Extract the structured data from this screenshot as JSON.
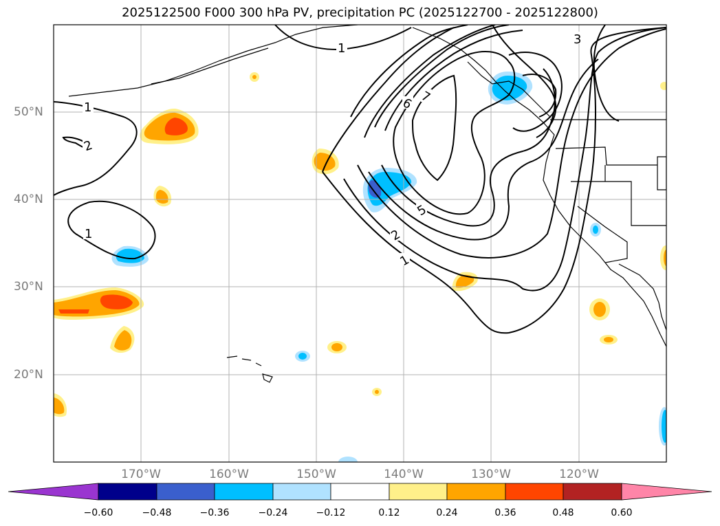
{
  "title": "2025122500 F000 300 hPa PV, precipitation PC (2025122700 - 2025122800)",
  "map": {
    "lat_labels": [
      "50°N",
      "40°N",
      "30°N",
      "20°N"
    ],
    "lon_labels": [
      "170°W",
      "160°W",
      "150°W",
      "140°W",
      "130°W",
      "120°W"
    ],
    "contour_labels": [
      "1",
      "2",
      "1",
      "1",
      "1",
      "2",
      "5",
      "6",
      "7",
      "3"
    ]
  },
  "colorbar": {
    "ticks": [
      "−0.60",
      "−0.48",
      "−0.36",
      "−0.24",
      "−0.12",
      "0.12",
      "0.24",
      "0.36",
      "0.48",
      "0.60"
    ],
    "colors": [
      "#9a35d0",
      "#00008b",
      "#3a5fcd",
      "#00bfff",
      "#b0e2ff",
      "#ffffff",
      "#fff08a",
      "#ffa500",
      "#ff4500",
      "#b22222",
      "#ff85a8"
    ]
  },
  "chart_data": {
    "type": "contour-map",
    "title": "2025122500 F000 300 hPa PV, precipitation PC (2025122700 - 2025122800)",
    "lon_range": [
      -180,
      -110
    ],
    "lat_range": [
      10,
      60
    ],
    "pv_contour_levels": [
      1,
      2,
      3,
      4,
      5,
      6,
      7
    ],
    "shading_levels": [
      -0.6,
      -0.48,
      -0.36,
      -0.24,
      -0.12,
      0.12,
      0.24,
      0.36,
      0.48,
      0.6
    ],
    "features": [
      {
        "name": "PV trough",
        "center_lon": -138,
        "center_lat": 47,
        "max_pv": 7
      },
      {
        "name": "negative PC",
        "lon": -128,
        "lat": 52
      },
      {
        "name": "negative PC",
        "lon": -143,
        "lat": 41
      },
      {
        "name": "positive PC",
        "lon": -166,
        "lat": 48
      },
      {
        "name": "positive PC",
        "lon": -172,
        "lat": 28
      }
    ]
  }
}
